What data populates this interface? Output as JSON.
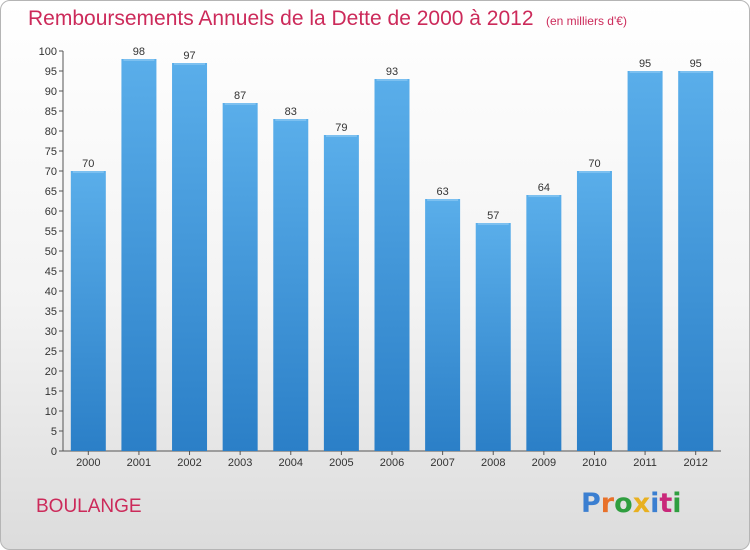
{
  "header": {
    "title": "Remboursements Annuels de la Dette de 2000 à 2012",
    "unit": "(en milliers d'€)"
  },
  "commune": "BOULANGE",
  "logo": {
    "text": "Proxiti",
    "letter_colors": [
      "#3b7fd1",
      "#e8712a",
      "#2f9e3f",
      "#e8b020",
      "#3b7fd1",
      "#c9287a",
      "#2f9e3f"
    ]
  },
  "colors": {
    "bar_top": "#5aaeea",
    "bar_bottom": "#2b7fc7",
    "accent": "#cc2a5a"
  },
  "chart_data": {
    "type": "bar",
    "title": "Remboursements Annuels de la Dette de 2000 à 2012",
    "categories": [
      "2000",
      "2001",
      "2002",
      "2003",
      "2004",
      "2005",
      "2006",
      "2007",
      "2008",
      "2009",
      "2010",
      "2011",
      "2012"
    ],
    "values": [
      70,
      98,
      97,
      87,
      83,
      79,
      93,
      63,
      57,
      64,
      70,
      95,
      95
    ],
    "ylim": [
      0,
      100
    ],
    "ytick_step": 5,
    "grid": false,
    "legend": "none"
  }
}
